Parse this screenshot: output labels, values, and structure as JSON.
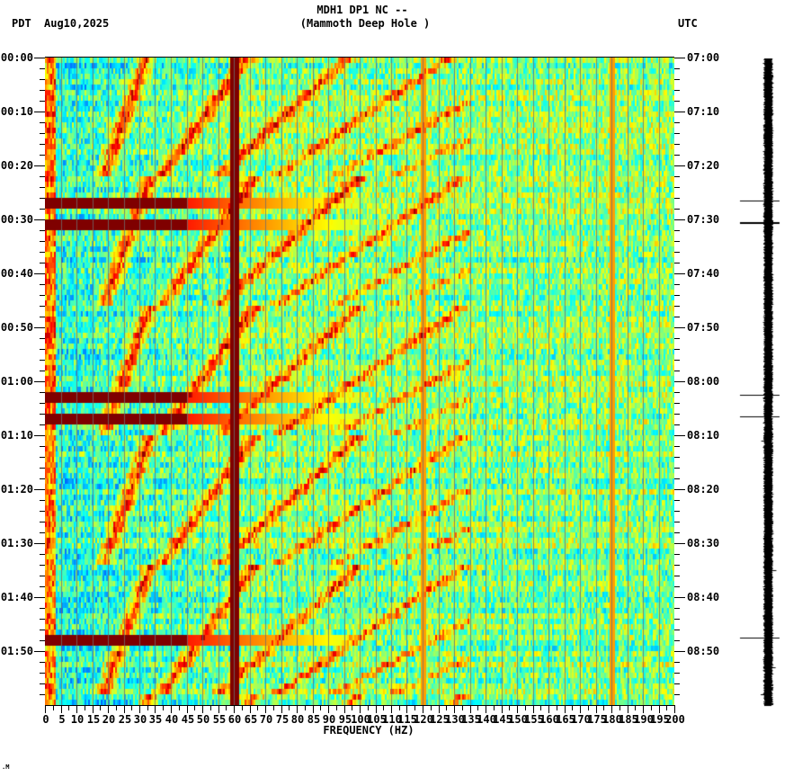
{
  "header": {
    "title_line1": "MDH1 DP1 NC --",
    "title_line2": "(Mammoth Deep Hole )",
    "left_timezone": "PDT",
    "date": "Aug10,2025",
    "right_timezone": "UTC"
  },
  "footer_mark": ".M",
  "chart_data": {
    "type": "heatmap",
    "title": "MDH1 DP1 NC -- (Mammoth Deep Hole )",
    "subtitle": "Aug10,2025",
    "xlabel": "FREQUENCY (HZ)",
    "ylabel_left": "PDT",
    "ylabel_right": "UTC",
    "xlim": [
      0,
      200
    ],
    "x_ticks": [
      0,
      5,
      10,
      15,
      20,
      25,
      30,
      35,
      40,
      45,
      50,
      55,
      60,
      65,
      70,
      75,
      80,
      85,
      90,
      95,
      100,
      105,
      110,
      115,
      120,
      125,
      130,
      135,
      140,
      145,
      150,
      155,
      160,
      165,
      170,
      175,
      180,
      185,
      190,
      195,
      200
    ],
    "y_ticks_left": [
      "00:00",
      "00:10",
      "00:20",
      "00:30",
      "00:40",
      "00:50",
      "01:00",
      "01:10",
      "01:20",
      "01:30",
      "01:40",
      "01:50"
    ],
    "y_ticks_right": [
      "07:00",
      "07:10",
      "07:20",
      "07:30",
      "07:40",
      "07:50",
      "08:00",
      "08:10",
      "08:20",
      "08:30",
      "08:40",
      "08:50"
    ],
    "time_span_minutes": 120,
    "colormap": "jet",
    "features": {
      "persistent_line_hz": 60,
      "faint_lines_hz": [
        120,
        180
      ],
      "broadband_events_minutes": [
        26.5,
        30.5,
        62.5,
        66.5,
        107.5
      ],
      "sweep_cycle_minutes": 24,
      "sweep_description": "Repeating curved harmonic sweeps rising in frequency over ~24 min cycles, strongest below 130 Hz"
    },
    "grid": true,
    "colors": {
      "low": "#0060ff",
      "mid": "#00e0ff",
      "high": "#ffff00",
      "peak": "#800000"
    }
  },
  "seismogram": {
    "spikes_minutes": [
      26.5,
      30.5,
      62.5,
      66.5,
      107.5,
      71,
      95,
      113,
      118
    ]
  }
}
